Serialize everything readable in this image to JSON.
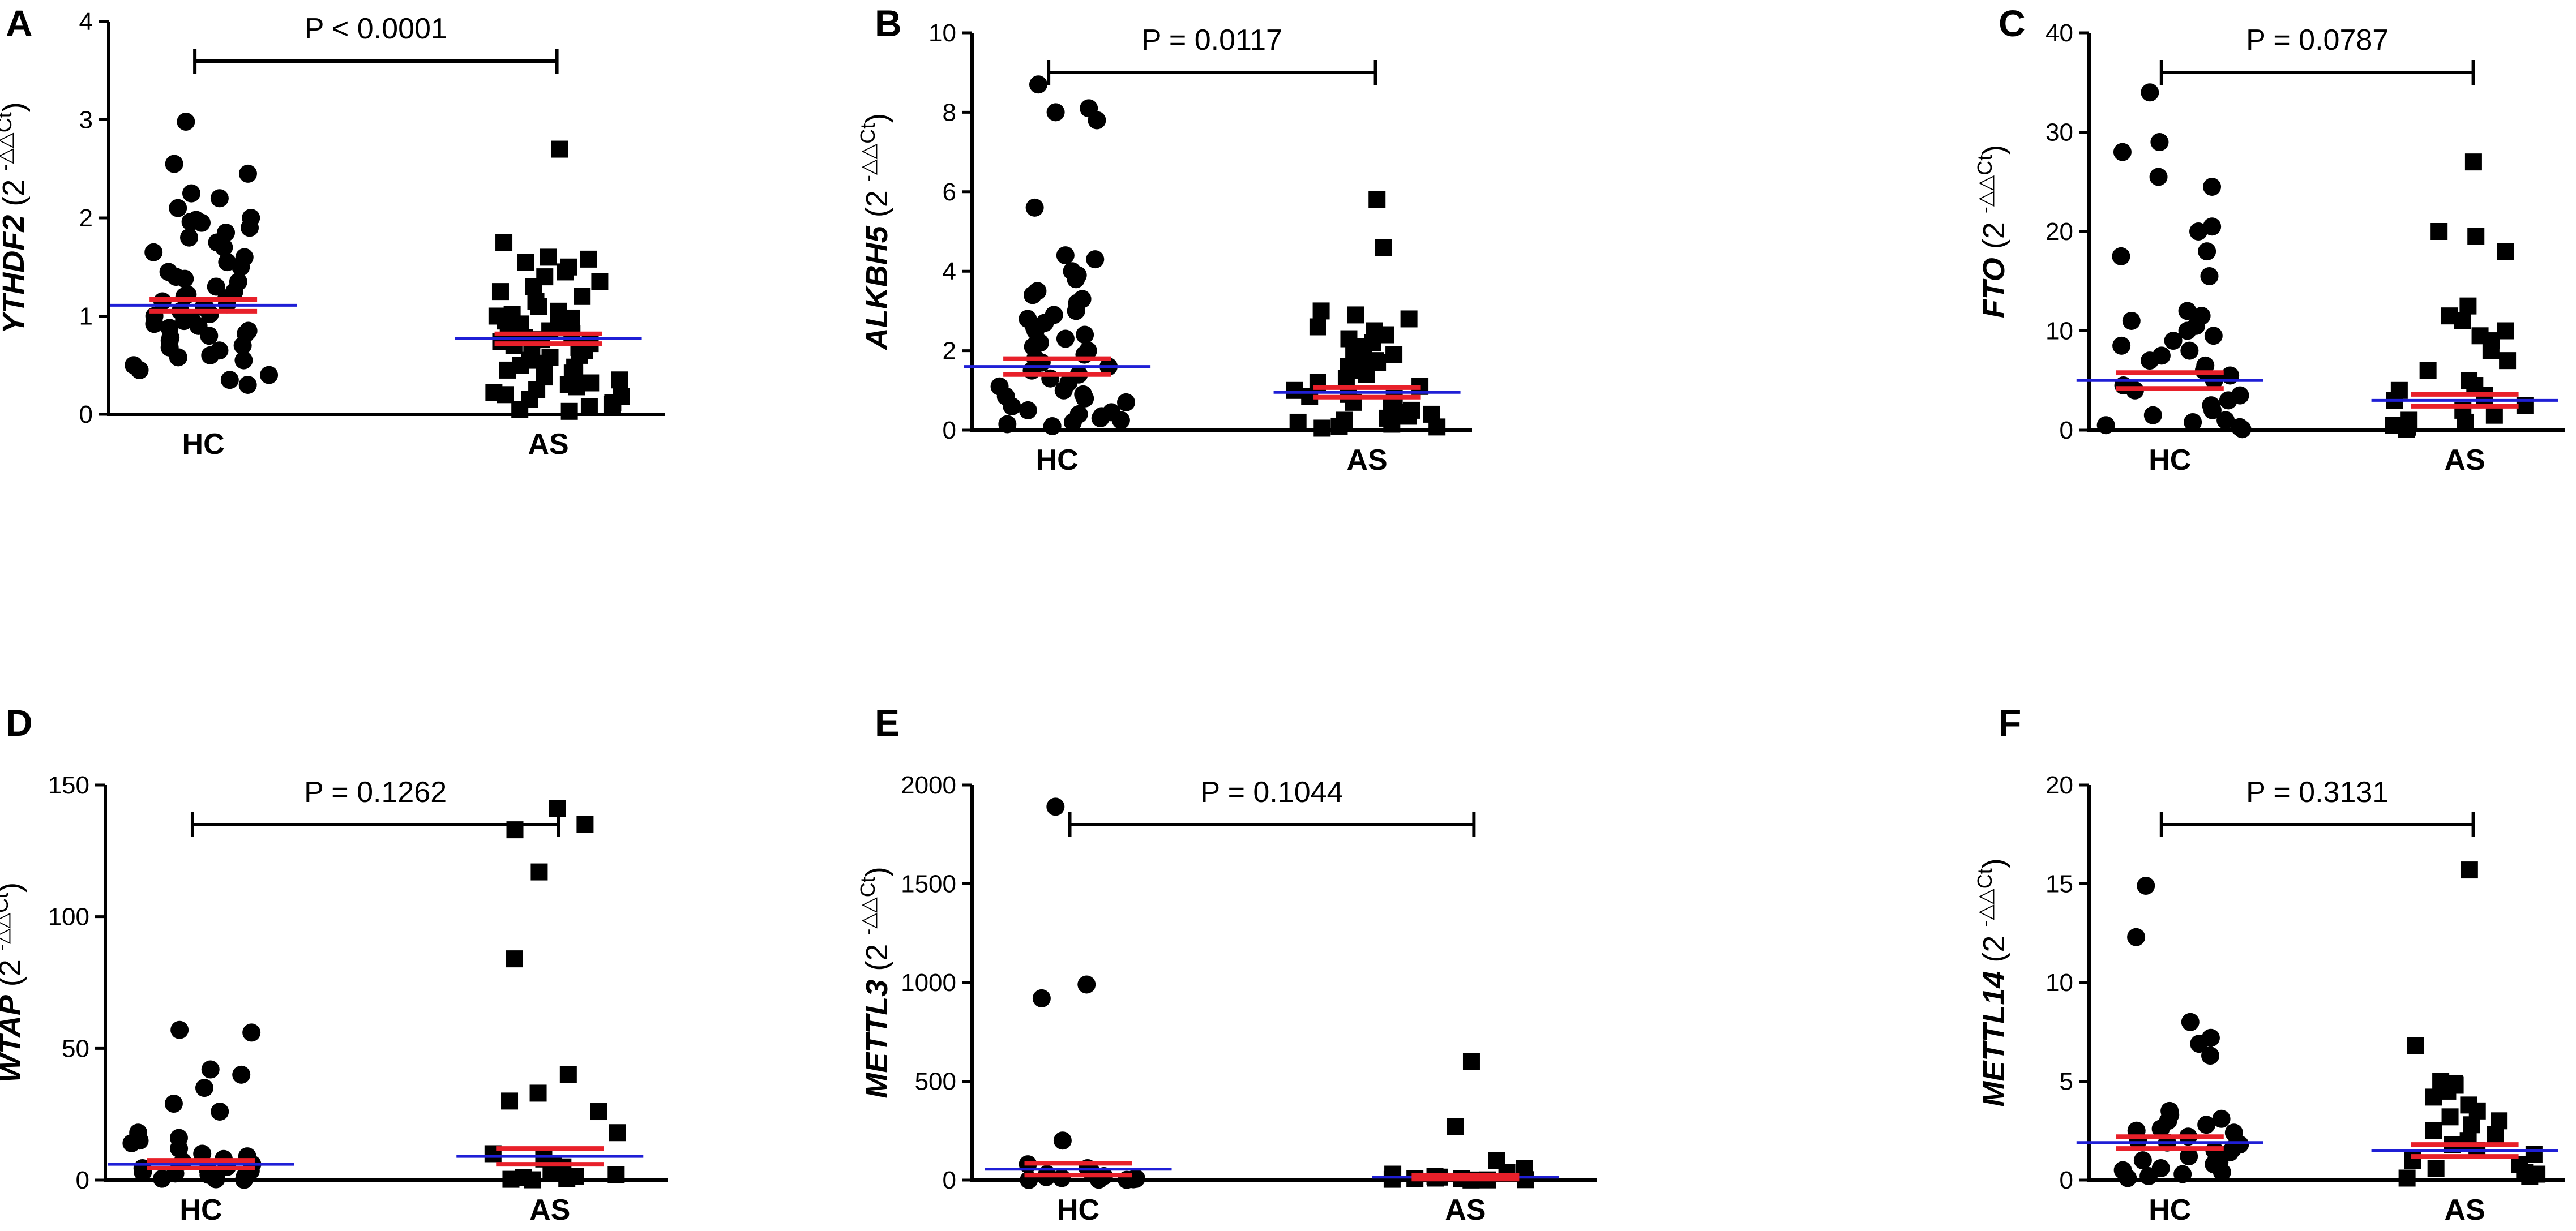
{
  "chart_data": [
    {
      "type": "scatter",
      "panel": "A",
      "gene": "YTHDF2",
      "ylabel_rest": " (2 ",
      "ylabel_sup": "-△△Ct",
      "ylabel_close": ")",
      "categories": [
        "HC",
        "AS"
      ],
      "ylim": [
        0,
        4
      ],
      "yticks": [
        0,
        1,
        2,
        3,
        4
      ],
      "tick_labels": [
        "0",
        "1",
        "2",
        "3",
        "4"
      ],
      "p_value": "P < 0.0001",
      "series": [
        {
          "name": "HC",
          "marker": "circle",
          "mean": 1.11,
          "sem": 0.06,
          "values": [
            2.98,
            2.55,
            2.45,
            2.25,
            2.2,
            2.1,
            2.0,
            1.98,
            1.96,
            1.95,
            1.9,
            1.85,
            1.8,
            1.75,
            1.7,
            1.65,
            1.6,
            1.55,
            1.5,
            1.45,
            1.4,
            1.38,
            1.35,
            1.3,
            1.25,
            1.22,
            1.2,
            1.18,
            1.15,
            1.12,
            1.1,
            1.08,
            1.05,
            1.02,
            1.0,
            0.98,
            0.95,
            0.92,
            0.9,
            0.88,
            0.85,
            0.82,
            0.8,
            0.78,
            0.75,
            0.7,
            0.68,
            0.65,
            0.6,
            0.58,
            0.55,
            0.5,
            0.45,
            0.4,
            0.35,
            0.3
          ]
        },
        {
          "name": "AS",
          "marker": "square",
          "mean": 0.77,
          "sem": 0.05,
          "values": [
            2.7,
            1.75,
            1.6,
            1.58,
            1.55,
            1.5,
            1.45,
            1.4,
            1.35,
            1.3,
            1.25,
            1.2,
            1.15,
            1.1,
            1.05,
            1.02,
            1.0,
            0.98,
            0.95,
            0.92,
            0.9,
            0.88,
            0.85,
            0.82,
            0.8,
            0.78,
            0.76,
            0.74,
            0.72,
            0.7,
            0.68,
            0.65,
            0.62,
            0.6,
            0.58,
            0.55,
            0.52,
            0.5,
            0.48,
            0.45,
            0.42,
            0.4,
            0.38,
            0.35,
            0.32,
            0.3,
            0.28,
            0.25,
            0.22,
            0.2,
            0.18,
            0.15,
            0.12,
            0.1,
            0.08,
            0.05,
            0.03
          ]
        }
      ]
    },
    {
      "type": "scatter",
      "panel": "B",
      "gene": "ALKBH5",
      "ylabel_rest": " (2 ",
      "ylabel_sup": "-△△Ct",
      "ylabel_close": ")",
      "categories": [
        "HC",
        "AS"
      ],
      "ylim": [
        0,
        10
      ],
      "yticks": [
        0,
        2,
        4,
        6,
        8,
        10
      ],
      "tick_labels": [
        "0",
        "2",
        "4",
        "6",
        "8",
        "10"
      ],
      "p_value": "P = 0.0117",
      "series": [
        {
          "name": "HC",
          "marker": "circle",
          "mean": 1.6,
          "sem": 0.2,
          "values": [
            8.7,
            8.1,
            8.0,
            7.8,
            5.6,
            4.4,
            4.3,
            4.0,
            3.9,
            3.8,
            3.5,
            3.4,
            3.3,
            3.2,
            3.0,
            2.9,
            2.8,
            2.7,
            2.6,
            2.5,
            2.4,
            2.3,
            2.2,
            2.1,
            2.0,
            1.9,
            1.8,
            1.7,
            1.6,
            1.5,
            1.4,
            1.3,
            1.2,
            1.1,
            1.0,
            0.9,
            0.85,
            0.8,
            0.7,
            0.6,
            0.5,
            0.45,
            0.4,
            0.35,
            0.3,
            0.25,
            0.2,
            0.15,
            0.1
          ]
        },
        {
          "name": "AS",
          "marker": "square",
          "mean": 0.95,
          "sem": 0.12,
          "values": [
            5.8,
            4.6,
            3.0,
            2.9,
            2.8,
            2.6,
            2.5,
            2.4,
            2.3,
            2.2,
            2.1,
            2.0,
            1.9,
            1.8,
            1.75,
            1.7,
            1.6,
            1.5,
            1.4,
            1.3,
            1.2,
            1.1,
            1.0,
            0.9,
            0.85,
            0.8,
            0.7,
            0.6,
            0.5,
            0.45,
            0.4,
            0.35,
            0.3,
            0.25,
            0.2,
            0.15,
            0.1,
            0.08,
            0.05
          ]
        }
      ]
    },
    {
      "type": "scatter",
      "panel": "C",
      "gene": "FTO",
      "ylabel_rest": " (2 ",
      "ylabel_sup": "-△△Ct",
      "ylabel_close": ")",
      "categories": [
        "HC",
        "AS"
      ],
      "ylim": [
        0,
        40
      ],
      "yticks": [
        0,
        10,
        20,
        30,
        40
      ],
      "tick_labels": [
        "0",
        "10",
        "20",
        "30",
        "40"
      ],
      "p_value": "P = 0.0787",
      "series": [
        {
          "name": "HC",
          "marker": "circle",
          "mean": 5.0,
          "sem": 0.8,
          "values": [
            34.0,
            29.0,
            28.0,
            25.5,
            24.5,
            20.5,
            20.0,
            18.0,
            17.5,
            15.5,
            12.0,
            11.5,
            11.0,
            10.5,
            10.0,
            9.5,
            9.0,
            8.5,
            8.0,
            7.5,
            7.0,
            6.5,
            6.0,
            5.5,
            5.0,
            4.5,
            4.0,
            3.5,
            3.0,
            2.5,
            2.0,
            1.5,
            1.0,
            0.8,
            0.5,
            0.3,
            0.1
          ]
        },
        {
          "name": "AS",
          "marker": "square",
          "mean": 3.0,
          "sem": 0.6,
          "values": [
            27.0,
            20.0,
            19.5,
            18.0,
            12.5,
            11.5,
            11.0,
            10.0,
            9.5,
            9.0,
            8.0,
            7.0,
            6.0,
            5.0,
            4.5,
            4.0,
            3.5,
            3.0,
            2.5,
            2.0,
            1.5,
            1.0,
            0.8,
            0.5,
            0.3,
            0.1
          ]
        }
      ]
    },
    {
      "type": "scatter",
      "panel": "D",
      "gene": "WTAP",
      "ylabel_rest": " (2 ",
      "ylabel_sup": "-△△Ct",
      "ylabel_close": ")",
      "categories": [
        "HC",
        "AS"
      ],
      "ylim": [
        0,
        150
      ],
      "yticks": [
        0,
        50,
        100,
        150
      ],
      "tick_labels": [
        "0",
        "50",
        "100",
        "150"
      ],
      "p_value": "P = 0.1262",
      "series": [
        {
          "name": "HC",
          "marker": "circle",
          "mean": 6.0,
          "sem": 1.5,
          "values": [
            57.0,
            56.0,
            42.0,
            40.0,
            35.0,
            29.0,
            26.0,
            18.0,
            16.0,
            15.0,
            14.0,
            12.0,
            10.0,
            9.0,
            8.0,
            7.0,
            6.0,
            5.0,
            4.5,
            4.0,
            3.5,
            3.0,
            2.5,
            2.0,
            1.5,
            1.0,
            0.5,
            0.3,
            0.1
          ]
        },
        {
          "name": "AS",
          "marker": "square",
          "mean": 9.0,
          "sem": 3.0,
          "values": [
            141.0,
            135.0,
            133.0,
            117.0,
            84.0,
            40.0,
            33.0,
            30.0,
            26.0,
            18.0,
            10.0,
            8.0,
            6.0,
            5.0,
            4.0,
            3.0,
            2.0,
            1.5,
            1.0,
            0.5,
            0.3,
            0.1
          ]
        }
      ]
    },
    {
      "type": "scatter",
      "panel": "E",
      "gene": "METTL3",
      "ylabel_rest": " (2 ",
      "ylabel_sup": "-△△Ct",
      "ylabel_close": ")",
      "categories": [
        "HC",
        "AS"
      ],
      "ylim": [
        0,
        2000
      ],
      "yticks": [
        0,
        500,
        1000,
        1500,
        2000
      ],
      "tick_labels": [
        "0",
        "500",
        "1000",
        "1500",
        "2000"
      ],
      "p_value": "P = 0.1044",
      "series": [
        {
          "name": "HC",
          "marker": "circle",
          "mean": 55.0,
          "sem": 30.0,
          "values": [
            1890.0,
            990.0,
            920.0,
            200.0,
            80.0,
            60.0,
            40.0,
            30.0,
            20.0,
            15.0,
            10.0,
            8.0,
            6.0,
            4.0,
            2.0,
            1.0,
            0.5
          ]
        },
        {
          "name": "AS",
          "marker": "square",
          "mean": 15.0,
          "sem": 10.0,
          "values": [
            600.0,
            270.0,
            100.0,
            60.0,
            40.0,
            30.0,
            20.0,
            15.0,
            10.0,
            8.0,
            6.0,
            4.0,
            2.0,
            1.0,
            0.5
          ]
        }
      ]
    },
    {
      "type": "scatter",
      "panel": "F",
      "gene": "METTL14",
      "ylabel_rest": " (2 ",
      "ylabel_sup": "-△△Ct",
      "ylabel_close": ")",
      "categories": [
        "HC",
        "AS"
      ],
      "ylim": [
        0,
        20
      ],
      "yticks": [
        0,
        5,
        10,
        15,
        20
      ],
      "tick_labels": [
        "0",
        "5",
        "10",
        "15",
        "20"
      ],
      "p_value": "P = 0.3131",
      "series": [
        {
          "name": "HC",
          "marker": "circle",
          "mean": 1.9,
          "sem": 0.3,
          "values": [
            14.9,
            12.3,
            8.0,
            7.2,
            6.9,
            6.3,
            3.5,
            3.3,
            3.1,
            3.0,
            2.8,
            2.6,
            2.5,
            2.4,
            2.2,
            2.0,
            1.9,
            1.8,
            1.6,
            1.5,
            1.4,
            1.2,
            1.0,
            0.9,
            0.8,
            0.6,
            0.5,
            0.4,
            0.3,
            0.2,
            0.1
          ]
        },
        {
          "name": "AS",
          "marker": "square",
          "mean": 1.5,
          "sem": 0.3,
          "values": [
            15.7,
            6.8,
            5.0,
            4.9,
            4.8,
            4.5,
            4.2,
            3.8,
            3.5,
            3.2,
            3.0,
            2.8,
            2.5,
            2.3,
            2.0,
            1.8,
            1.5,
            1.3,
            1.0,
            0.8,
            0.6,
            0.4,
            0.3,
            0.2,
            0.1
          ]
        }
      ]
    }
  ],
  "colors": {
    "marker": "#000000",
    "axis": "#000000",
    "mean_line": "#1f1fd6",
    "sem_line": "#e8202a",
    "text": "#000000"
  }
}
